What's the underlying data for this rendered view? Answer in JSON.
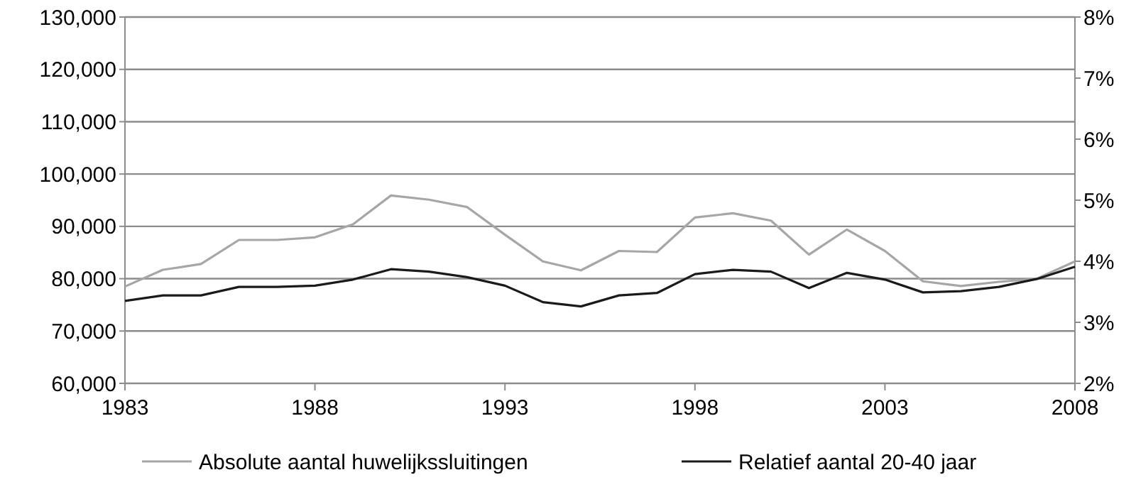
{
  "chart_data": {
    "type": "line",
    "x": [
      1983,
      1984,
      1985,
      1986,
      1987,
      1988,
      1989,
      1990,
      1991,
      1992,
      1993,
      1994,
      1995,
      1996,
      1997,
      1998,
      1999,
      2000,
      2001,
      2002,
      2003,
      2004,
      2005,
      2006,
      2007,
      2008
    ],
    "series": [
      {
        "name": "Absolute aantal huwelijkssluitingen",
        "color": "#a6a6a6",
        "values": [
          78500,
          81700,
          82800,
          87400,
          87400,
          87900,
          90400,
          95900,
          95100,
          93700,
          88400,
          83300,
          81600,
          85300,
          85100,
          91700,
          92500,
          91100,
          84600,
          89400,
          85300,
          79500,
          78600,
          79400,
          80000,
          83300
        ]
      },
      {
        "name": "Relatief aantal 20-40 jaar",
        "color": "#1a1a1a",
        "axis": "y2",
        "values": [
          3.35,
          3.44,
          3.44,
          3.58,
          3.58,
          3.6,
          3.7,
          3.87,
          3.83,
          3.74,
          3.6,
          3.33,
          3.26,
          3.44,
          3.48,
          3.79,
          3.86,
          3.83,
          3.56,
          3.81,
          3.7,
          3.49,
          3.51,
          3.58,
          3.71,
          3.91
        ]
      }
    ],
    "xlim": [
      1983,
      2008
    ],
    "xticks": [
      1983,
      1988,
      1993,
      1998,
      2003,
      2008
    ],
    "ylim": [
      60000,
      130000
    ],
    "yticks": [
      {
        "value": 60000,
        "label": "60,000"
      },
      {
        "value": 70000,
        "label": "70,000"
      },
      {
        "value": 80000,
        "label": "80,000"
      },
      {
        "value": 90000,
        "label": "90,000"
      },
      {
        "value": 100000,
        "label": "100,000"
      },
      {
        "value": 110000,
        "label": "110,000"
      },
      {
        "value": 120000,
        "label": "120,000"
      },
      {
        "value": 130000,
        "label": "130,000"
      }
    ],
    "y2lim": [
      2,
      8
    ],
    "y2ticks": [
      {
        "value": 2,
        "label": "2%"
      },
      {
        "value": 3,
        "label": "3%"
      },
      {
        "value": 4,
        "label": "4%"
      },
      {
        "value": 5,
        "label": "5%"
      },
      {
        "value": 6,
        "label": "6%"
      },
      {
        "value": 7,
        "label": "7%"
      },
      {
        "value": 8,
        "label": "8%"
      }
    ],
    "grid": "y",
    "legend": "bottom",
    "marker": "none",
    "line_style": "solid"
  }
}
